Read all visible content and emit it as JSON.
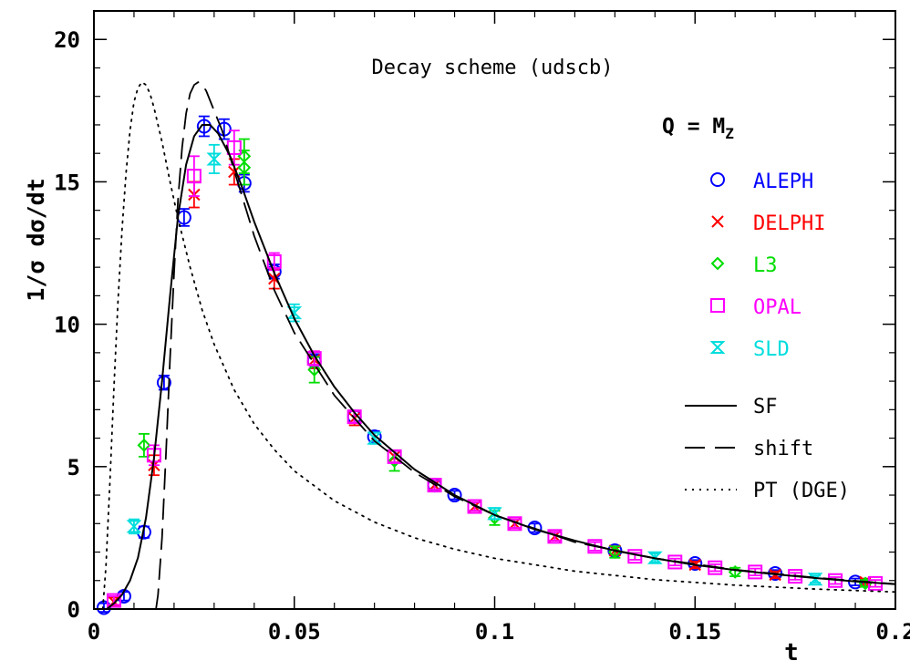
{
  "chart_data": {
    "type": "scatter",
    "title": "Decay scheme (udscb)",
    "subtitle_prefix": "Q = M",
    "subtitle_sub": "Z",
    "xlabel": "t",
    "ylabel": "1/σ dσ/dt",
    "xlim": [
      0,
      0.2
    ],
    "ylim": [
      0,
      21
    ],
    "xticks": [
      {
        "v": 0,
        "label": "0"
      },
      {
        "v": 0.05,
        "label": "0.05"
      },
      {
        "v": 0.1,
        "label": "0.1"
      },
      {
        "v": 0.15,
        "label": "0.15"
      },
      {
        "v": 0.2,
        "label": "0.2"
      }
    ],
    "yticks": [
      {
        "v": 0,
        "label": "0"
      },
      {
        "v": 5,
        "label": "5"
      },
      {
        "v": 10,
        "label": "10"
      },
      {
        "v": 15,
        "label": "15"
      },
      {
        "v": 20,
        "label": "20"
      }
    ],
    "grid": false,
    "legend_position": "right",
    "series": [
      {
        "name": "ALEPH",
        "marker": "circle",
        "color": "#0000ff",
        "points": [
          {
            "x": 0.0025,
            "y": 0.05,
            "err": 0.15
          },
          {
            "x": 0.0075,
            "y": 0.45,
            "err": 0.15
          },
          {
            "x": 0.0125,
            "y": 2.7,
            "err": 0.2
          },
          {
            "x": 0.0175,
            "y": 7.95,
            "err": 0.25
          },
          {
            "x": 0.0225,
            "y": 13.75,
            "err": 0.3
          },
          {
            "x": 0.0275,
            "y": 16.95,
            "err": 0.35
          },
          {
            "x": 0.0325,
            "y": 16.85,
            "err": 0.35
          },
          {
            "x": 0.0375,
            "y": 14.95,
            "err": 0.3
          },
          {
            "x": 0.045,
            "y": 11.85,
            "err": 0.25
          },
          {
            "x": 0.055,
            "y": 8.7,
            "err": 0.25
          },
          {
            "x": 0.065,
            "y": 6.75,
            "err": 0.2
          },
          {
            "x": 0.07,
            "y": 6.05,
            "err": 0.2
          },
          {
            "x": 0.085,
            "y": 4.35,
            "err": 0.15
          },
          {
            "x": 0.09,
            "y": 4.0,
            "err": 0.15
          },
          {
            "x": 0.11,
            "y": 2.85,
            "err": 0.15
          },
          {
            "x": 0.13,
            "y": 2.05,
            "err": 0.15
          },
          {
            "x": 0.15,
            "y": 1.6,
            "err": 0.12
          },
          {
            "x": 0.17,
            "y": 1.25,
            "err": 0.12
          },
          {
            "x": 0.19,
            "y": 0.95,
            "err": 0.12
          }
        ]
      },
      {
        "name": "DELPHI",
        "marker": "cross",
        "color": "#ff0000",
        "points": [
          {
            "x": 0.005,
            "y": 0.25,
            "err": 0.15
          },
          {
            "x": 0.015,
            "y": 5.05,
            "err": 0.35
          },
          {
            "x": 0.025,
            "y": 14.55,
            "err": 0.45
          },
          {
            "x": 0.035,
            "y": 15.35,
            "err": 0.45
          },
          {
            "x": 0.045,
            "y": 11.6,
            "err": 0.35
          },
          {
            "x": 0.055,
            "y": 8.75,
            "err": 0.3
          },
          {
            "x": 0.065,
            "y": 6.7,
            "err": 0.25
          },
          {
            "x": 0.075,
            "y": 5.35,
            "err": 0.2
          },
          {
            "x": 0.085,
            "y": 4.35,
            "err": 0.15
          },
          {
            "x": 0.095,
            "y": 3.6,
            "err": 0.15
          },
          {
            "x": 0.105,
            "y": 3.0,
            "err": 0.15
          },
          {
            "x": 0.115,
            "y": 2.55,
            "err": 0.15
          },
          {
            "x": 0.13,
            "y": 2.05,
            "err": 0.15
          },
          {
            "x": 0.15,
            "y": 1.55,
            "err": 0.12
          },
          {
            "x": 0.17,
            "y": 1.2,
            "err": 0.12
          },
          {
            "x": 0.1925,
            "y": 0.95,
            "err": 0.12
          }
        ]
      },
      {
        "name": "L3",
        "marker": "diamond",
        "color": "#00dd00",
        "points": [
          {
            "x": 0.0125,
            "y": 5.75,
            "err": 0.4
          },
          {
            "x": 0.0375,
            "y": 15.5,
            "err": 0.6
          },
          {
            "x": 0.0375,
            "y": 15.9,
            "err": 0.6
          },
          {
            "x": 0.055,
            "y": 8.4,
            "err": 0.45
          },
          {
            "x": 0.075,
            "y": 5.2,
            "err": 0.35
          },
          {
            "x": 0.1,
            "y": 3.2,
            "err": 0.25
          },
          {
            "x": 0.13,
            "y": 2.0,
            "err": 0.2
          },
          {
            "x": 0.16,
            "y": 1.3,
            "err": 0.15
          },
          {
            "x": 0.1925,
            "y": 0.9,
            "err": 0.12
          }
        ]
      },
      {
        "name": "OPAL",
        "marker": "square",
        "color": "#ff00ff",
        "points": [
          {
            "x": 0.005,
            "y": 0.3,
            "err": 0.15
          },
          {
            "x": 0.015,
            "y": 5.4,
            "err": 0.35
          },
          {
            "x": 0.025,
            "y": 15.2,
            "err": 0.7
          },
          {
            "x": 0.035,
            "y": 16.2,
            "err": 0.6
          },
          {
            "x": 0.045,
            "y": 12.2,
            "err": 0.3
          },
          {
            "x": 0.055,
            "y": 8.8,
            "err": 0.25
          },
          {
            "x": 0.065,
            "y": 6.75,
            "err": 0.2
          },
          {
            "x": 0.075,
            "y": 5.35,
            "err": 0.2
          },
          {
            "x": 0.085,
            "y": 4.35,
            "err": 0.15
          },
          {
            "x": 0.095,
            "y": 3.6,
            "err": 0.15
          },
          {
            "x": 0.105,
            "y": 3.0,
            "err": 0.15
          },
          {
            "x": 0.115,
            "y": 2.55,
            "err": 0.15
          },
          {
            "x": 0.125,
            "y": 2.2,
            "err": 0.15
          },
          {
            "x": 0.135,
            "y": 1.85,
            "err": 0.12
          },
          {
            "x": 0.145,
            "y": 1.65,
            "err": 0.12
          },
          {
            "x": 0.155,
            "y": 1.45,
            "err": 0.12
          },
          {
            "x": 0.165,
            "y": 1.3,
            "err": 0.12
          },
          {
            "x": 0.175,
            "y": 1.15,
            "err": 0.12
          },
          {
            "x": 0.185,
            "y": 1.0,
            "err": 0.12
          },
          {
            "x": 0.195,
            "y": 0.9,
            "err": 0.12
          }
        ]
      },
      {
        "name": "SLD",
        "marker": "hourglass",
        "color": "#00dddd",
        "points": [
          {
            "x": 0.01,
            "y": 2.9,
            "err": 0.25
          },
          {
            "x": 0.03,
            "y": 15.8,
            "err": 0.5
          },
          {
            "x": 0.05,
            "y": 10.4,
            "err": 0.3
          },
          {
            "x": 0.07,
            "y": 6.0,
            "err": 0.2
          },
          {
            "x": 0.1,
            "y": 3.35,
            "err": 0.2
          },
          {
            "x": 0.14,
            "y": 1.8,
            "err": 0.15
          },
          {
            "x": 0.18,
            "y": 1.05,
            "err": 0.12
          }
        ]
      }
    ],
    "curves": [
      {
        "name": "SF",
        "dash": "solid",
        "x": [
          0.0032,
          0.005,
          0.007,
          0.009,
          0.011,
          0.013,
          0.015,
          0.017,
          0.019,
          0.021,
          0.023,
          0.025,
          0.027,
          0.029,
          0.031,
          0.034,
          0.037,
          0.04,
          0.045,
          0.05,
          0.055,
          0.06,
          0.065,
          0.07,
          0.08,
          0.09,
          0.1,
          0.11,
          0.12,
          0.13,
          0.14,
          0.15,
          0.16,
          0.17,
          0.18,
          0.19,
          0.2
        ],
        "y": [
          0.0,
          0.2,
          0.5,
          1.0,
          1.8,
          3.2,
          5.3,
          8.0,
          11.0,
          13.8,
          15.6,
          16.6,
          17.0,
          17.0,
          16.7,
          15.9,
          14.8,
          13.6,
          11.8,
          10.2,
          8.9,
          7.8,
          6.9,
          6.1,
          4.9,
          4.0,
          3.3,
          2.8,
          2.4,
          2.05,
          1.78,
          1.55,
          1.37,
          1.22,
          1.09,
          0.97,
          0.87
        ]
      },
      {
        "name": "shift",
        "dash": "long-dash",
        "x": [
          0.0155,
          0.016,
          0.017,
          0.018,
          0.019,
          0.02,
          0.021,
          0.022,
          0.023,
          0.024,
          0.025,
          0.026,
          0.027,
          0.028,
          0.03,
          0.032,
          0.035,
          0.04,
          0.045,
          0.05,
          0.06,
          0.07,
          0.08,
          0.09,
          0.1,
          0.12,
          0.14,
          0.16,
          0.18,
          0.2
        ],
        "y": [
          0.0,
          0.5,
          2.5,
          5.5,
          8.8,
          11.8,
          14.4,
          16.2,
          17.4,
          18.1,
          18.4,
          18.5,
          18.4,
          18.2,
          17.5,
          16.8,
          15.4,
          13.1,
          11.2,
          9.7,
          7.5,
          5.9,
          4.8,
          3.95,
          3.3,
          2.35,
          1.78,
          1.38,
          1.1,
          0.88
        ]
      },
      {
        "name": "PT (DGE)",
        "dash": "dotted",
        "x": [
          0.0022,
          0.003,
          0.004,
          0.005,
          0.006,
          0.007,
          0.008,
          0.009,
          0.01,
          0.011,
          0.012,
          0.013,
          0.014,
          0.015,
          0.017,
          0.019,
          0.021,
          0.024,
          0.027,
          0.03,
          0.035,
          0.04,
          0.045,
          0.05,
          0.06,
          0.07,
          0.08,
          0.09,
          0.1,
          0.12,
          0.14,
          0.16,
          0.18,
          0.2
        ],
        "y": [
          0.0,
          1.5,
          4.5,
          7.8,
          10.8,
          13.3,
          15.3,
          16.8,
          17.8,
          18.3,
          18.5,
          18.4,
          18.1,
          17.6,
          16.4,
          15.0,
          13.7,
          12.0,
          10.5,
          9.3,
          7.7,
          6.5,
          5.6,
          4.85,
          3.8,
          3.05,
          2.5,
          2.1,
          1.78,
          1.33,
          1.03,
          0.84,
          0.7,
          0.6
        ]
      }
    ]
  }
}
